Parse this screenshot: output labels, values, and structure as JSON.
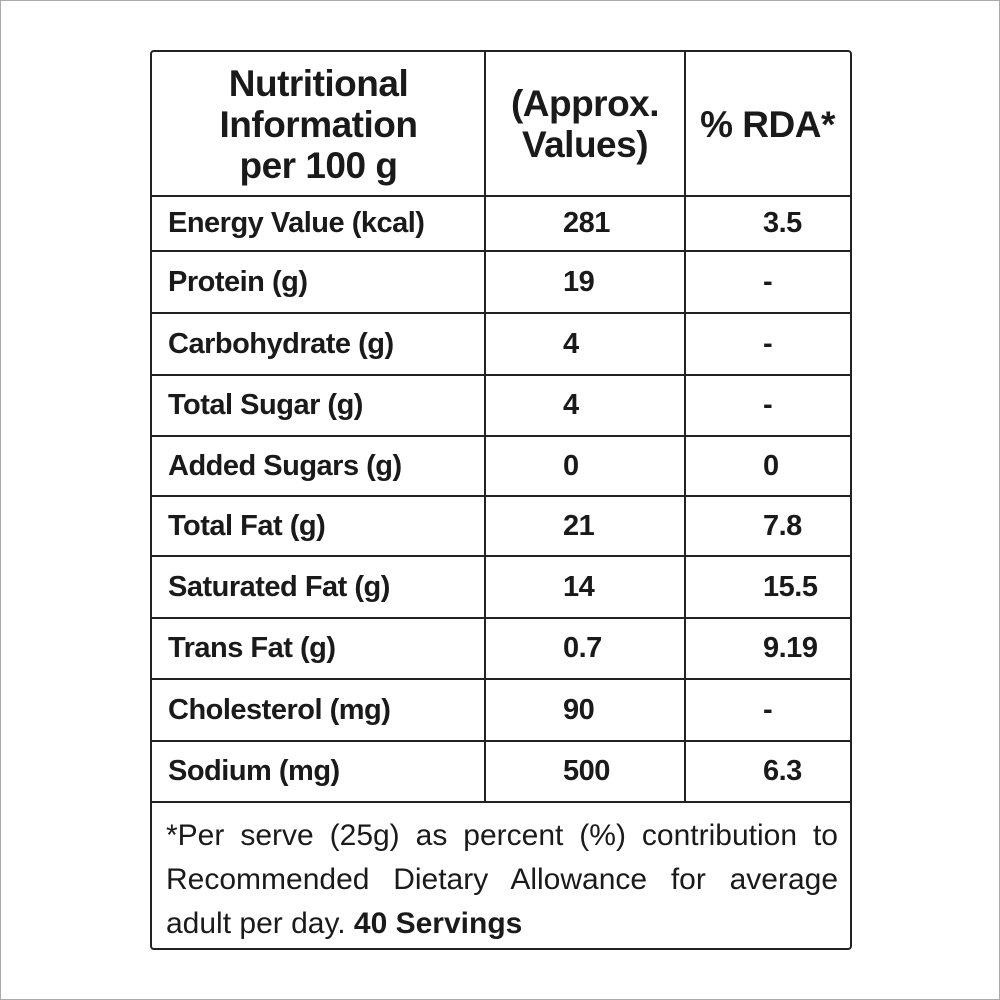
{
  "header": {
    "columns": [
      {
        "lines": [
          "Nutritional",
          "Information",
          "per 100 g"
        ]
      },
      {
        "lines": [
          "(Approx.",
          "Values)"
        ]
      },
      {
        "lines": [
          "% RDA*"
        ]
      }
    ]
  },
  "table": {
    "rows": [
      [
        "Energy Value (kcal)",
        "281",
        "3.5"
      ],
      [
        "Protein (g)",
        "19",
        "-"
      ],
      [
        "Carbohydrate (g)",
        "4",
        "-"
      ],
      [
        "Total Sugar (g)",
        "4",
        "-"
      ],
      [
        "Added Sugars (g)",
        "0",
        "0"
      ],
      [
        "Total Fat (g)",
        "21",
        "7.8"
      ],
      [
        "Saturated Fat (g)",
        "14",
        "15.5"
      ],
      [
        "Trans Fat (g)",
        "0.7",
        "9.19"
      ],
      [
        "Cholesterol (mg)",
        "90",
        "-"
      ],
      [
        "Sodium (mg)",
        "500",
        "6.3"
      ]
    ]
  },
  "footer": {
    "note": "*Per serve (25g) as percent (%) contribution to Recommended Dietary Allowance for average adult per day.",
    "servings": "40 Servings"
  }
}
